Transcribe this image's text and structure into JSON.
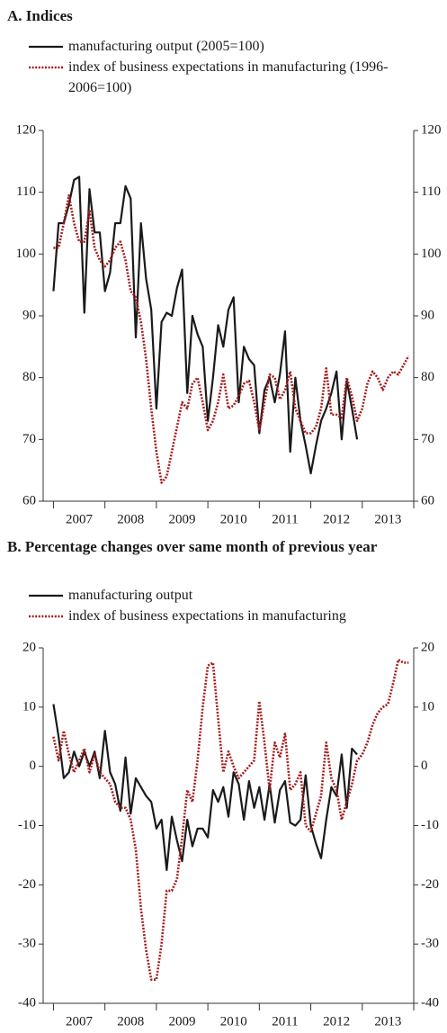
{
  "chart_data": [
    {
      "type": "line",
      "title": "A. Indices",
      "x": [
        2007,
        2007.1,
        2007.2,
        2007.3,
        2007.4,
        2007.5,
        2007.6,
        2007.7,
        2007.8,
        2007.9,
        2008,
        2008.1,
        2008.2,
        2008.3,
        2008.4,
        2008.5,
        2008.6,
        2008.7,
        2008.8,
        2008.9,
        2009,
        2009.1,
        2009.2,
        2009.3,
        2009.4,
        2009.5,
        2009.6,
        2009.7,
        2009.8,
        2009.9,
        2010,
        2010.1,
        2010.2,
        2010.3,
        2010.4,
        2010.5,
        2010.6,
        2010.7,
        2010.8,
        2010.9,
        2011,
        2011.1,
        2011.2,
        2011.3,
        2011.4,
        2011.5,
        2011.6,
        2011.7,
        2011.8,
        2011.9,
        2012,
        2012.1,
        2012.2,
        2012.3,
        2012.4,
        2012.5,
        2012.6,
        2012.7,
        2012.8,
        2012.9,
        2013,
        2013.1,
        2013.2,
        2013.3,
        2013.4,
        2013.5,
        2013.6,
        2013.7,
        2013.8,
        2013.9
      ],
      "series": [
        {
          "name": "manufacturing output (2005=100)",
          "color": "#1a1a1a",
          "dash": "solid",
          "values": [
            94,
            105,
            105,
            108,
            112,
            112.5,
            90.5,
            110.5,
            103.5,
            103.5,
            94,
            97,
            105,
            105,
            111,
            109,
            86.5,
            105,
            96,
            91,
            75,
            89,
            90.5,
            90,
            94.5,
            97.5,
            77.5,
            90,
            87,
            85,
            73,
            80,
            88.5,
            85,
            91,
            93,
            76,
            85,
            83,
            82,
            71,
            78,
            80,
            76,
            80.5,
            87.5,
            68,
            80,
            73,
            69,
            64.5,
            69,
            73,
            75,
            77.5,
            81,
            70,
            79.5,
            75,
            70,
            null,
            null,
            null,
            null,
            null,
            null,
            null,
            null,
            null,
            null
          ]
        },
        {
          "name": "index of business expectations in manufacturing (1996-2006=100)",
          "color": "#a61c1c",
          "dash": "dotted",
          "values": [
            101,
            101,
            105,
            109.5,
            105,
            102,
            102,
            107,
            101,
            99,
            98,
            99,
            101,
            102,
            99,
            94,
            93,
            89,
            83,
            75,
            68,
            63,
            64,
            68,
            72,
            76,
            75,
            79,
            80,
            76,
            71.5,
            73,
            76,
            80.5,
            75,
            75.5,
            77,
            79,
            79.5,
            76,
            71.5,
            76,
            80.5,
            80,
            76.5,
            78,
            81,
            75,
            73,
            71,
            71,
            72,
            75,
            81.5,
            74,
            74,
            73.5,
            80,
            77,
            73,
            75,
            79,
            81,
            80,
            78,
            80,
            81,
            80.5,
            82,
            83.5
          ]
        }
      ],
      "xlim": [
        2006.8,
        2014
      ],
      "xticks": [
        2007,
        2008,
        2009,
        2010,
        2011,
        2012,
        2013,
        2014
      ],
      "categories": [
        "2007",
        "2008",
        "2009",
        "2010",
        "2011",
        "2012",
        "2013"
      ],
      "ylim": [
        60,
        120
      ],
      "yticks": [
        60,
        70,
        80,
        90,
        100,
        110,
        120
      ],
      "y_labels_both_sides": true,
      "grid": false
    },
    {
      "type": "line",
      "title": "B. Percentage changes over same month of previous year",
      "x": [
        2007,
        2007.1,
        2007.2,
        2007.3,
        2007.4,
        2007.5,
        2007.6,
        2007.7,
        2007.8,
        2007.9,
        2008,
        2008.1,
        2008.2,
        2008.3,
        2008.4,
        2008.5,
        2008.6,
        2008.7,
        2008.8,
        2008.9,
        2009,
        2009.1,
        2009.2,
        2009.3,
        2009.4,
        2009.5,
        2009.6,
        2009.7,
        2009.8,
        2009.9,
        2010,
        2010.1,
        2010.2,
        2010.3,
        2010.4,
        2010.5,
        2010.6,
        2010.7,
        2010.8,
        2010.9,
        2011,
        2011.1,
        2011.2,
        2011.3,
        2011.4,
        2011.5,
        2011.6,
        2011.7,
        2011.8,
        2011.9,
        2012,
        2012.1,
        2012.2,
        2012.3,
        2012.4,
        2012.5,
        2012.6,
        2012.7,
        2012.8,
        2012.9,
        2013,
        2013.1,
        2013.2,
        2013.3,
        2013.4,
        2013.5,
        2013.6,
        2013.7,
        2013.8,
        2013.9
      ],
      "series": [
        {
          "name": "manufacturing output",
          "color": "#1a1a1a",
          "dash": "solid",
          "values": [
            10.5,
            5,
            -2,
            -1,
            2.5,
            0,
            2.5,
            0,
            2.5,
            -2,
            6,
            -1,
            -3,
            -7.5,
            1.5,
            -8,
            -2,
            -3.5,
            -5,
            -6,
            -10.5,
            -9,
            -17.5,
            -8.5,
            -12.5,
            -16,
            -9,
            -13.5,
            -10.5,
            -10.5,
            -12,
            -4,
            -6,
            -3.5,
            -8.5,
            -1,
            -3,
            -9,
            -2.5,
            -7,
            -3.5,
            -9,
            -3,
            -9.5,
            -4,
            -2.5,
            -9.5,
            -10,
            -9,
            -1.5,
            -10,
            -13,
            -15.5,
            -9,
            -3.5,
            -5,
            2,
            -7,
            3,
            2,
            null,
            null,
            null,
            null,
            null,
            null,
            null,
            null,
            null,
            null
          ]
        },
        {
          "name": "index of business expectations in manufacturing",
          "color": "#a61c1c",
          "dash": "dotted",
          "values": [
            5,
            1,
            6,
            2,
            -1,
            1,
            3,
            -1,
            2,
            -1,
            -2,
            -3,
            -6,
            -7,
            -7,
            -9,
            -14,
            -24,
            -31,
            -36,
            -36,
            -30,
            -21,
            -21,
            -19,
            -12,
            -4,
            -6,
            1,
            10,
            17,
            17.5,
            8,
            -1,
            2.5,
            0,
            -2,
            -1,
            0,
            1,
            11,
            4,
            -4,
            4,
            1.5,
            5.5,
            -4,
            -3,
            -1,
            -10,
            -11,
            -8,
            -5,
            4,
            -2,
            -4,
            -9,
            -6,
            -3,
            1,
            2,
            4,
            7,
            9,
            10,
            10.5,
            14,
            18,
            17.5,
            17.5
          ]
        }
      ],
      "xlim": [
        2006.8,
        2014
      ],
      "xticks": [
        2007,
        2008,
        2009,
        2010,
        2011,
        2012,
        2013,
        2014
      ],
      "categories": [
        "2007",
        "2008",
        "2009",
        "2010",
        "2011",
        "2012",
        "2013"
      ],
      "ylim": [
        -40,
        20
      ],
      "yticks": [
        -40,
        -30,
        -20,
        -10,
        0,
        10,
        20
      ],
      "y_labels_both_sides": true,
      "grid": false
    }
  ]
}
